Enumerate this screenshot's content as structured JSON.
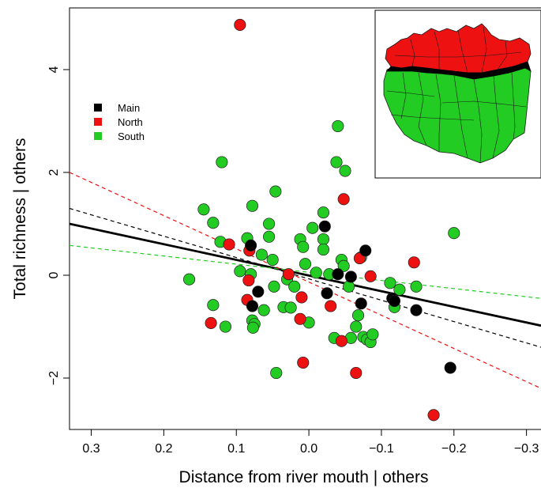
{
  "chart_data": {
    "type": "scatter",
    "title": "",
    "xlabel": "Distance from river mouth | others",
    "ylabel": "Total richness | others",
    "xlim": [
      0.33,
      -0.32
    ],
    "ylim": [
      -3.0,
      5.2
    ],
    "x_reversed": true,
    "x_ticks": [
      0.3,
      0.2,
      0.1,
      0.0,
      -0.1,
      -0.2,
      -0.3
    ],
    "x_tick_labels": [
      "0.3",
      "0.2",
      "0.1",
      "0.0",
      "−0.1",
      "−0.2",
      "−0.3"
    ],
    "y_ticks": [
      -2,
      0,
      2,
      4
    ],
    "y_tick_labels": [
      "−2",
      "0",
      "2",
      "4"
    ],
    "grid": false,
    "legend_position": "top-left",
    "colors": {
      "Main": "#000000",
      "North": "#ee1111",
      "South": "#22cc22"
    },
    "series": [
      {
        "name": "Main",
        "points": [
          [
            0.08,
            0.58
          ],
          [
            0.07,
            -0.32
          ],
          [
            0.078,
            -0.6
          ],
          [
            -0.022,
            0.95
          ],
          [
            -0.04,
            0.02
          ],
          [
            -0.058,
            -0.03
          ],
          [
            -0.025,
            -0.35
          ],
          [
            -0.078,
            0.48
          ],
          [
            -0.072,
            -0.55
          ],
          [
            -0.115,
            -0.45
          ],
          [
            -0.118,
            -0.5
          ],
          [
            -0.148,
            -0.68
          ],
          [
            -0.195,
            -1.8
          ]
        ]
      },
      {
        "name": "North",
        "points": [
          [
            0.095,
            4.87
          ],
          [
            0.082,
            0.48
          ],
          [
            0.11,
            0.6
          ],
          [
            0.083,
            -0.1
          ],
          [
            0.085,
            -0.48
          ],
          [
            0.135,
            -0.93
          ],
          [
            0.012,
            -0.85
          ],
          [
            0.01,
            -0.43
          ],
          [
            0.028,
            0.02
          ],
          [
            -0.048,
            1.48
          ],
          [
            -0.03,
            -0.6
          ],
          [
            -0.045,
            -1.28
          ],
          [
            -0.07,
            0.33
          ],
          [
            -0.085,
            -0.02
          ],
          [
            0.008,
            -1.7
          ],
          [
            -0.065,
            -1.9
          ],
          [
            -0.145,
            0.25
          ],
          [
            -0.172,
            -2.72
          ]
        ]
      },
      {
        "name": "South",
        "points": [
          [
            0.165,
            -0.08
          ],
          [
            0.145,
            1.28
          ],
          [
            0.132,
            1.02
          ],
          [
            0.122,
            0.65
          ],
          [
            0.12,
            2.2
          ],
          [
            0.132,
            -0.58
          ],
          [
            0.115,
            -1.0
          ],
          [
            0.078,
            1.35
          ],
          [
            0.085,
            0.72
          ],
          [
            0.08,
            0.02
          ],
          [
            0.095,
            0.08
          ],
          [
            0.078,
            -0.88
          ],
          [
            0.075,
            -0.95
          ],
          [
            0.077,
            -1.02
          ],
          [
            0.065,
            0.4
          ],
          [
            0.062,
            -0.68
          ],
          [
            0.055,
            1.0
          ],
          [
            0.055,
            0.75
          ],
          [
            0.05,
            0.3
          ],
          [
            0.046,
            1.63
          ],
          [
            0.048,
            -0.22
          ],
          [
            0.035,
            -0.62
          ],
          [
            0.03,
            -0.08
          ],
          [
            0.025,
            -0.63
          ],
          [
            0.02,
            -0.22
          ],
          [
            0.012,
            0.7
          ],
          [
            0.008,
            0.55
          ],
          [
            0.005,
            0.22
          ],
          [
            0.0,
            -0.92
          ],
          [
            -0.005,
            0.92
          ],
          [
            -0.01,
            0.05
          ],
          [
            -0.02,
            0.7
          ],
          [
            -0.02,
            1.22
          ],
          [
            -0.02,
            0.5
          ],
          [
            -0.028,
            0.02
          ],
          [
            -0.035,
            -1.22
          ],
          [
            -0.04,
            2.9
          ],
          [
            -0.038,
            2.2
          ],
          [
            -0.05,
            2.03
          ],
          [
            -0.045,
            0.3
          ],
          [
            -0.048,
            0.18
          ],
          [
            -0.055,
            -0.22
          ],
          [
            -0.058,
            -1.22
          ],
          [
            -0.065,
            -1.0
          ],
          [
            -0.068,
            -0.78
          ],
          [
            -0.072,
            0.35
          ],
          [
            -0.075,
            -1.2
          ],
          [
            -0.08,
            -1.25
          ],
          [
            -0.085,
            -1.3
          ],
          [
            -0.088,
            -1.15
          ],
          [
            -0.112,
            -0.15
          ],
          [
            -0.118,
            -0.62
          ],
          [
            -0.125,
            -0.28
          ],
          [
            -0.148,
            -0.22
          ],
          [
            -0.2,
            0.82
          ],
          [
            0.045,
            -1.9
          ]
        ]
      }
    ],
    "fit_lines": [
      {
        "name": "All",
        "color": "#000000",
        "dashed": false,
        "x": [
          0.33,
          -0.32
        ],
        "y": [
          1.0,
          -0.98
        ]
      },
      {
        "name": "Main",
        "color": "#000000",
        "dashed": true,
        "x": [
          0.33,
          -0.32
        ],
        "y": [
          1.3,
          -1.4
        ]
      },
      {
        "name": "North",
        "color": "#ee1111",
        "dashed": true,
        "x": [
          0.33,
          -0.32
        ],
        "y": [
          2.0,
          -2.2
        ]
      },
      {
        "name": "South",
        "color": "#22cc22",
        "dashed": true,
        "x": [
          0.33,
          -0.32
        ],
        "y": [
          0.58,
          -0.45
        ]
      }
    ],
    "legend": [
      {
        "label": "Main",
        "color": "#000000"
      },
      {
        "label": "North",
        "color": "#ee1111"
      },
      {
        "label": "South",
        "color": "#22cc22"
      }
    ],
    "inset": {
      "type": "map",
      "regions": [
        "North",
        "Main",
        "South"
      ]
    }
  }
}
